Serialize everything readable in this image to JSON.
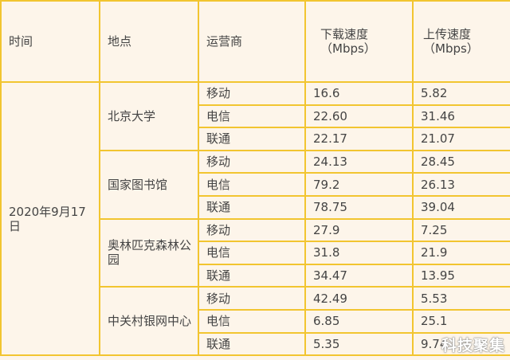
{
  "headers": {
    "time": "时间",
    "location": "地点",
    "carrier": "运营商",
    "download": "下载速度",
    "download_unit": "（Mbps）",
    "upload": "上传速度",
    "upload_unit": "（Mbps）"
  },
  "date": "2020年9月17日",
  "groups": [
    {
      "location": "北京大学",
      "rows": [
        {
          "carrier": "移动",
          "down": "16.6",
          "up": "5.82"
        },
        {
          "carrier": "电信",
          "down": "22.60",
          "up": "31.46"
        },
        {
          "carrier": "联通",
          "down": "22.17",
          "up": "21.07"
        }
      ]
    },
    {
      "location": "国家图书馆",
      "rows": [
        {
          "carrier": "移动",
          "down": "24.13",
          "up": "28.45"
        },
        {
          "carrier": "电信",
          "down": "79.2",
          "up": "26.13"
        },
        {
          "carrier": "联通",
          "down": "78.75",
          "up": "39.04"
        }
      ]
    },
    {
      "location": "奥林匹克森林公园",
      "rows": [
        {
          "carrier": "移动",
          "down": "27.9",
          "up": "7.25"
        },
        {
          "carrier": "电信",
          "down": "31.8",
          "up": "21.9"
        },
        {
          "carrier": "联通",
          "down": "34.47",
          "up": "13.95"
        }
      ]
    },
    {
      "location": "中关村银网中心",
      "rows": [
        {
          "carrier": "移动",
          "down": "42.49",
          "up": "5.53"
        },
        {
          "carrier": "电信",
          "down": "6.85",
          "up": "25.1"
        },
        {
          "carrier": "联通",
          "down": "5.35",
          "up": "9.74"
        }
      ]
    }
  ],
  "watermark": "科技聚集",
  "colors": {
    "border": "#f2c530",
    "background": "#fdf5ea"
  }
}
